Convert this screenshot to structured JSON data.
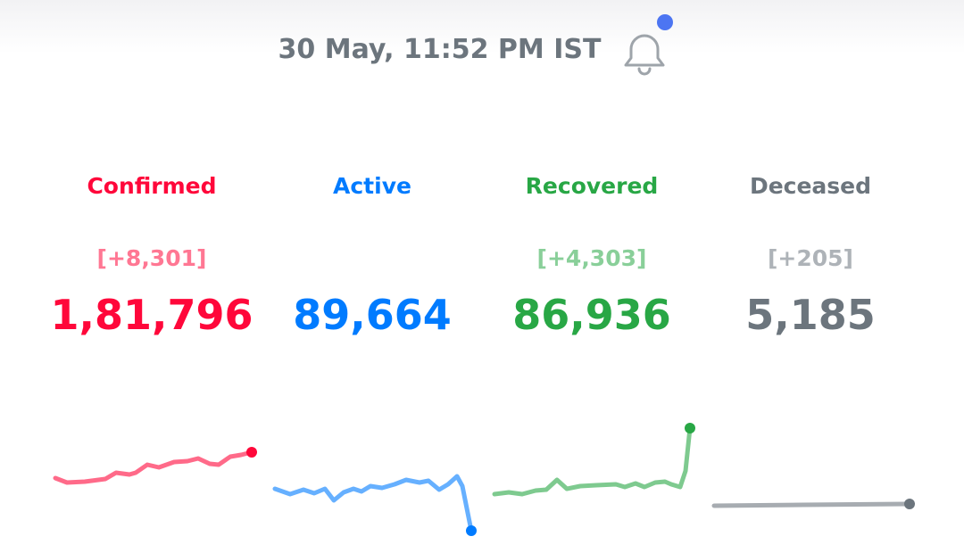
{
  "header": {
    "timestamp": "30 May, 11:52 PM IST"
  },
  "stats": [
    {
      "label": "Confirmed",
      "delta": "[+8,301]",
      "total": "1,81,796"
    },
    {
      "label": "Active",
      "total": "89,664"
    },
    {
      "label": "Recovered",
      "delta": "[+4,303]",
      "total": "86,936"
    },
    {
      "label": "Deceased",
      "delta": "[+205]",
      "total": "5,185"
    }
  ]
}
